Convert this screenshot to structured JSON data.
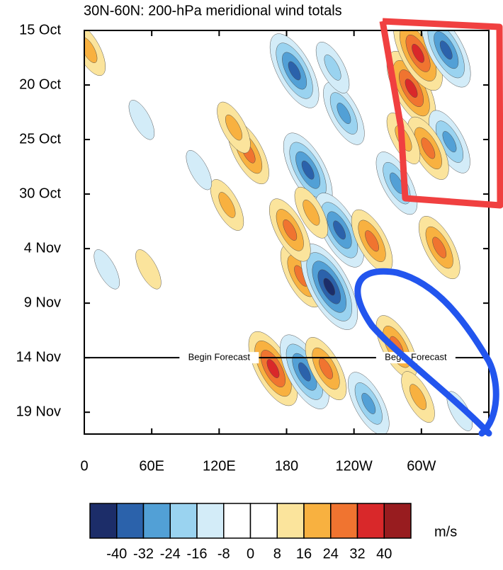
{
  "chart_data": {
    "type": "hovmoller",
    "title": "30N-60N: 200-hPa meridional wind totals",
    "xlim": [
      0,
      360
    ],
    "xticks": [
      0,
      {
        "value": 60,
        "label": "60E"
      },
      {
        "value": 120,
        "label": "120E"
      },
      {
        "value": 180,
        "label": "180"
      },
      {
        "value": 240,
        "label": "120W"
      },
      {
        "value": 300,
        "label": "60W"
      }
    ],
    "ylim": [
      0,
      37
    ],
    "yticks": [
      {
        "value": 0,
        "label": "15 Oct"
      },
      {
        "value": 5,
        "label": "20 Oct"
      },
      {
        "value": 10,
        "label": "25 Oct"
      },
      {
        "value": 15,
        "label": "30 Oct"
      },
      {
        "value": 20,
        "label": "4 Nov"
      },
      {
        "value": 25,
        "label": "9 Nov"
      },
      {
        "value": 30,
        "label": "14 Nov"
      },
      {
        "value": 35,
        "label": "19 Nov"
      }
    ],
    "forecast_start": {
      "value": 30,
      "label": "Begin Forecast"
    },
    "features": {
      "lon": [
        187,
        291,
        297,
        322,
        325,
        146,
        199,
        231,
        193,
        218,
        227,
        183,
        256,
        306,
        284,
        253,
        168,
        196,
        215,
        278,
        316,
        221,
        51,
        4,
        133,
        127,
        102,
        20,
        57,
        278,
        202,
        297,
        334
      ],
      "day": [
        3.7,
        5.3,
        2.1,
        1.8,
        10.2,
        11.2,
        12.8,
        7.6,
        22.5,
        23.5,
        18.3,
        18.3,
        19.3,
        10.8,
        9.9,
        34.2,
        31,
        31.3,
        31,
        29,
        19.9,
        3.4,
        8.2,
        1.8,
        8.9,
        16,
        12.8,
        21.9,
        21.9,
        14,
        16.7,
        33.6,
        34.9
      ],
      "values": [
        -36,
        36,
        36,
        -36,
        -28,
        28,
        -36,
        -28,
        28,
        -44,
        -36,
        28,
        28,
        28,
        20,
        -28,
        36,
        -36,
        28,
        28,
        28,
        -20,
        -12,
        20,
        20,
        20,
        -12,
        -12,
        12,
        -28,
        20,
        20,
        -12
      ]
    },
    "colorbar": {
      "levels": [
        -40,
        -32,
        -24,
        -16,
        -8,
        0,
        8,
        16,
        24,
        32,
        40
      ],
      "colors": [
        "#1c2d69",
        "#2b62ab",
        "#52a0d6",
        "#9ad3f0",
        "#d3ecf8",
        "#ffffff",
        "#ffffff",
        "#fbe49c",
        "#f8b140",
        "#f07430",
        "#d9282a",
        "#981c1f"
      ],
      "unit": "m/s"
    }
  }
}
